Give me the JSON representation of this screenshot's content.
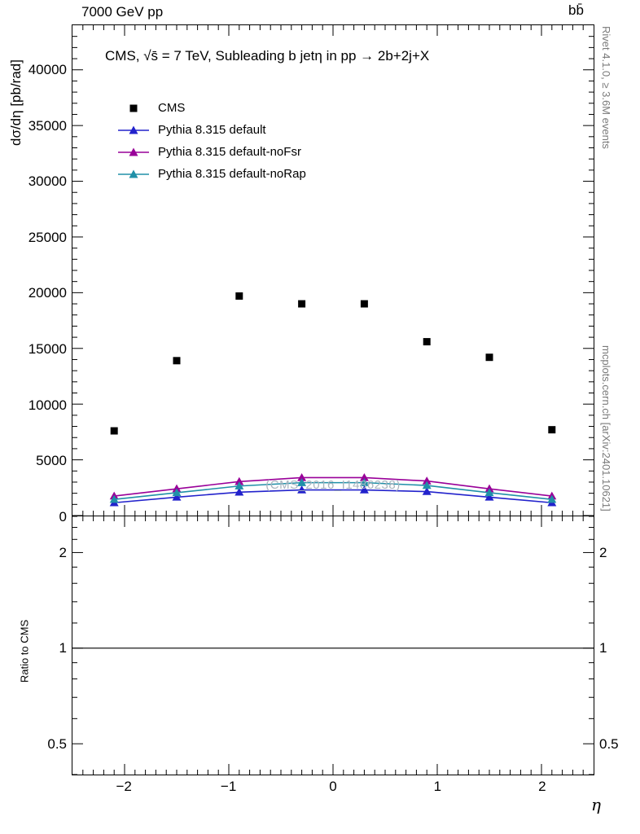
{
  "header": {
    "left": "7000 GeV pp",
    "right": "bb̄"
  },
  "right_margin": {
    "top": "Rivet 4.1.0, ≥ 3.6M events",
    "bottom": "mcplots.cern.ch [arXiv:2401.10621]"
  },
  "main": {
    "title": "CMS, √s̄ = 7 TeV, Subleading b jetη in pp →  2b+2j+X",
    "ylabel": "dσ/dη [pb/rad]",
    "watermark": "(CMS_2016_I1486238)"
  },
  "ratio": {
    "ylabel": "Ratio to CMS"
  },
  "xlabel": "η",
  "chart_data": {
    "type": "scatter",
    "title": "CMS, sqrt(s) = 7 TeV, Subleading b jet eta in pp -> 2b+2j+X",
    "xlabel": "η",
    "ylabel": "dσ/dη [pb/rad]",
    "x": [
      -2.1,
      -1.5,
      -0.9,
      -0.3,
      0.3,
      0.9,
      1.5,
      2.1
    ],
    "series": [
      {
        "name": "CMS",
        "marker": "square",
        "line": false,
        "color": "#000000",
        "values": [
          7600,
          13900,
          19700,
          19000,
          19000,
          15600,
          14200,
          7700
        ]
      },
      {
        "name": "Pythia 8.315 default",
        "marker": "triangle",
        "line": true,
        "color": "#2222cc",
        "values": [
          1150,
          1650,
          2100,
          2300,
          2300,
          2150,
          1650,
          1150
        ]
      },
      {
        "name": "Pythia 8.315 default-noFsr",
        "marker": "triangle",
        "line": true,
        "color": "#990099",
        "values": [
          1750,
          2400,
          3050,
          3400,
          3400,
          3100,
          2400,
          1750
        ]
      },
      {
        "name": "Pythia 8.315 default-noRap",
        "marker": "triangle",
        "line": true,
        "color": "#2090a8",
        "values": [
          1450,
          2050,
          2650,
          2950,
          2950,
          2700,
          2050,
          1450
        ]
      }
    ],
    "xlim": [
      -2.5,
      2.5
    ],
    "ylim": [
      0,
      44000
    ],
    "xticks": [
      -2,
      -1,
      0,
      1,
      2
    ],
    "yticks": [
      0,
      5000,
      10000,
      15000,
      20000,
      25000,
      30000,
      35000,
      40000
    ],
    "grid": false,
    "legend_position": "top-left",
    "ratio_axis": {
      "ylim": [
        0.4,
        2.6
      ],
      "scale": "log",
      "yticks": [
        0.5,
        1,
        2
      ],
      "reference_line": 1
    }
  }
}
